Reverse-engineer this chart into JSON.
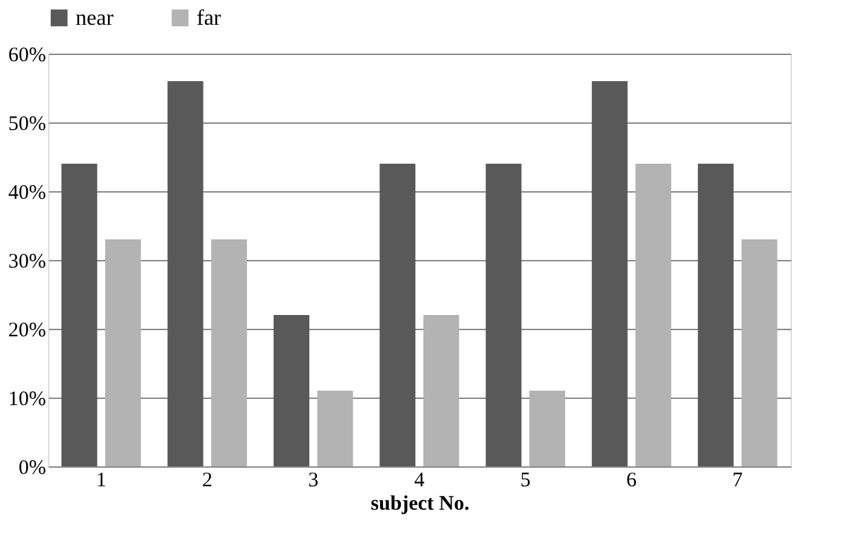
{
  "chart_data": {
    "type": "bar",
    "xlabel": "subject No.",
    "categories": [
      "1",
      "2",
      "3",
      "4",
      "5",
      "6",
      "7"
    ],
    "series": [
      {
        "name": "near",
        "color": "#595959",
        "values": [
          44,
          56,
          22,
          44,
          44,
          56,
          44
        ]
      },
      {
        "name": "far",
        "color": "#b3b3b3",
        "values": [
          33,
          33,
          11,
          22,
          11,
          44,
          33
        ]
      }
    ],
    "ylim": [
      0,
      60
    ],
    "yticks": [
      {
        "value": 0,
        "label": "0%"
      },
      {
        "value": 10,
        "label": "10%"
      },
      {
        "value": 20,
        "label": "20%"
      },
      {
        "value": 30,
        "label": "30%"
      },
      {
        "value": 40,
        "label": "40%"
      },
      {
        "value": 50,
        "label": "50%"
      },
      {
        "value": 60,
        "label": "60%"
      }
    ],
    "grid": "y",
    "legend": "top"
  }
}
